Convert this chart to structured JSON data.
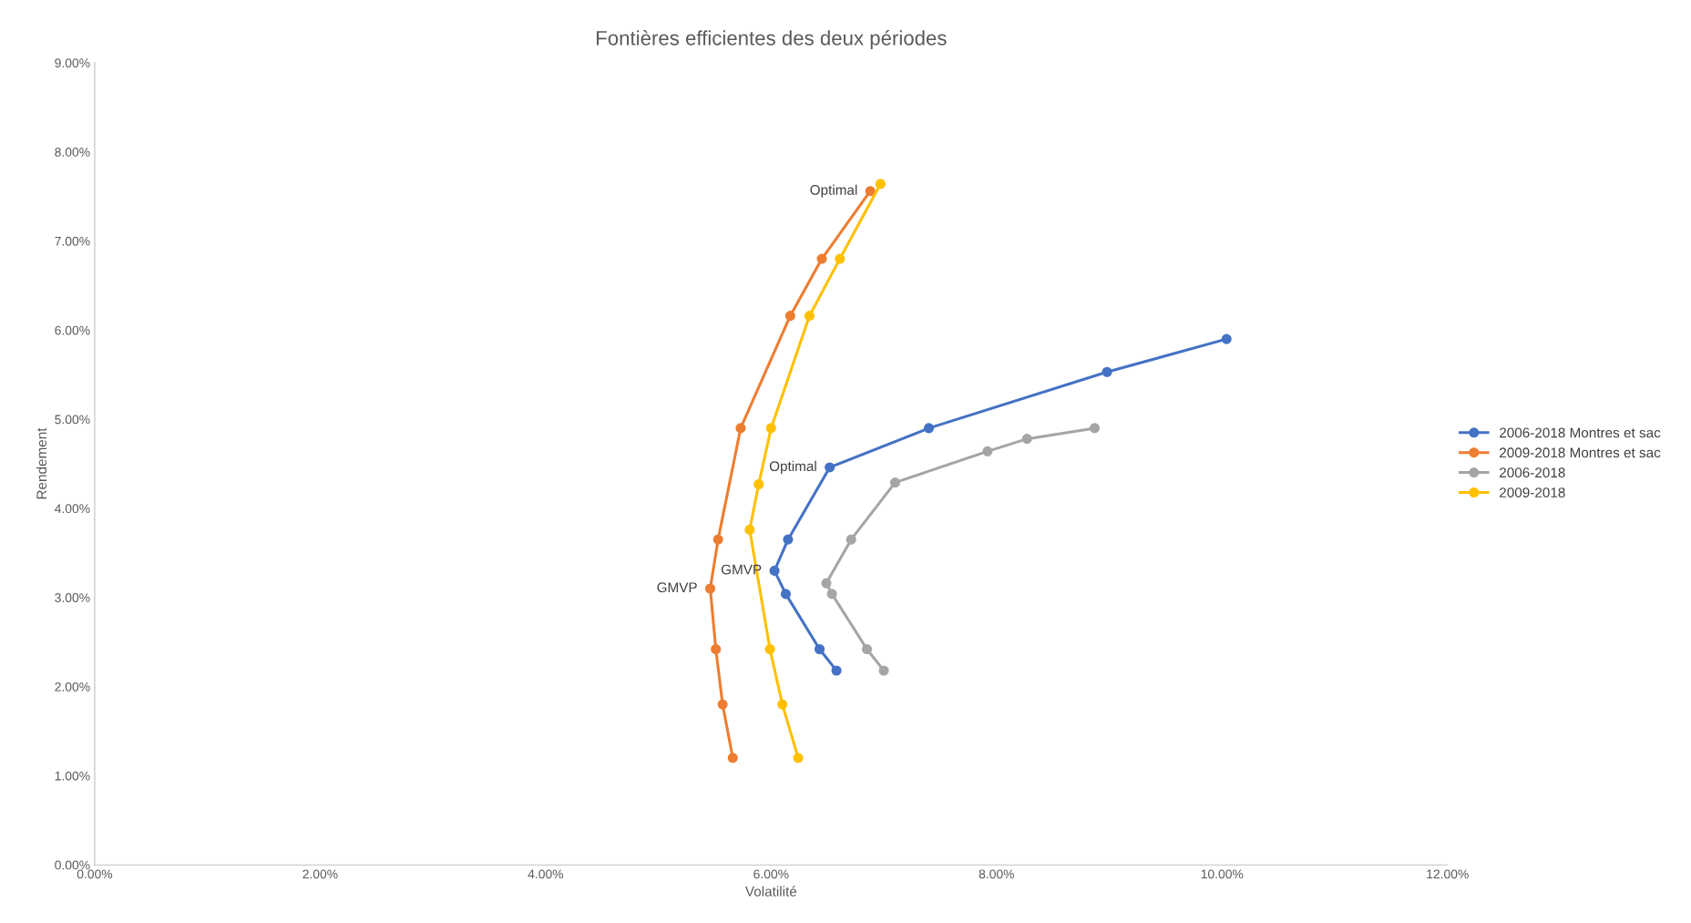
{
  "chart_data": {
    "type": "line",
    "title": "Fontières efficientes des deux périodes",
    "xlabel": "Volatilité",
    "ylabel": "Rendement",
    "xlim": [
      0,
      12
    ],
    "ylim": [
      0,
      9
    ],
    "xticks": [
      {
        "value": 0,
        "label": "0.00%"
      },
      {
        "value": 2,
        "label": "2.00%"
      },
      {
        "value": 4,
        "label": "4.00%"
      },
      {
        "value": 6,
        "label": "6.00%"
      },
      {
        "value": 8,
        "label": "8.00%"
      },
      {
        "value": 10,
        "label": "10.00%"
      },
      {
        "value": 12,
        "label": "12.00%"
      }
    ],
    "yticks": [
      {
        "value": 0,
        "label": "0.00%"
      },
      {
        "value": 1,
        "label": "1.00%"
      },
      {
        "value": 2,
        "label": "2.00%"
      },
      {
        "value": 3,
        "label": "3.00%"
      },
      {
        "value": 4,
        "label": "4.00%"
      },
      {
        "value": 5,
        "label": "5.00%"
      },
      {
        "value": 6,
        "label": "6.00%"
      },
      {
        "value": 7,
        "label": "7.00%"
      },
      {
        "value": 8,
        "label": "8.00%"
      },
      {
        "value": 9,
        "label": "9.00%"
      }
    ],
    "grid": false,
    "legend": "right",
    "marker": "circle",
    "line_style": "solid",
    "series": [
      {
        "name": "2006-2018 Montres et sac",
        "color": "#4472c4",
        "x": [
          10.04,
          8.98,
          7.4,
          6.52,
          6.15,
          6.03,
          6.13,
          6.43,
          6.58
        ],
        "values": [
          5.9,
          5.53,
          4.9,
          4.46,
          3.65,
          3.3,
          3.04,
          2.42,
          2.18
        ]
      },
      {
        "name": "2009-2018 Montres et sac",
        "color": "#ed7d31",
        "x": [
          6.88,
          6.45,
          6.17,
          5.73,
          5.53,
          5.46,
          5.51,
          5.57,
          5.66
        ],
        "values": [
          7.56,
          6.8,
          6.16,
          4.9,
          3.65,
          3.1,
          2.42,
          1.8,
          1.2
        ]
      },
      {
        "name": "2006-2018",
        "color": "#a5a5a5",
        "x": [
          8.87,
          8.27,
          7.92,
          7.1,
          6.71,
          6.49,
          6.54,
          6.85,
          7.0
        ],
        "values": [
          4.9,
          4.78,
          4.64,
          4.29,
          3.65,
          3.16,
          3.04,
          2.42,
          2.18
        ]
      },
      {
        "name": "2009-2018",
        "color": "#ffc000",
        "x": [
          6.97,
          6.61,
          6.34,
          6.0,
          5.89,
          5.81,
          5.99,
          6.1,
          6.24
        ],
        "values": [
          7.64,
          6.8,
          6.16,
          4.9,
          4.27,
          3.76,
          2.42,
          1.8,
          1.2
        ]
      }
    ],
    "annotations": [
      {
        "text": "Optimal",
        "x": 6.88,
        "y": 7.56
      },
      {
        "text": "Optimal",
        "x": 6.52,
        "y": 4.46
      },
      {
        "text": "GMVP",
        "x": 5.46,
        "y": 3.1
      },
      {
        "text": "GMVP",
        "x": 6.03,
        "y": 3.3
      }
    ]
  }
}
